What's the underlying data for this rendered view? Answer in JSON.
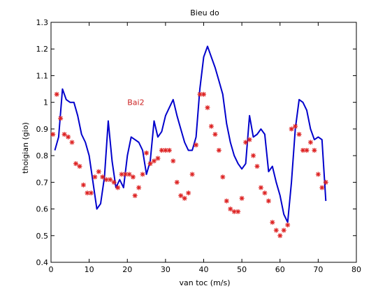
{
  "chart_data": {
    "type": "line",
    "title": "Bieu do",
    "xlabel": "van toc (m/s)",
    "ylabel": "thoigian (gio)",
    "xlim": [
      0,
      80
    ],
    "ylim": [
      0.4,
      1.3
    ],
    "xticks": [
      0,
      10,
      20,
      30,
      40,
      50,
      60,
      70,
      80
    ],
    "yticks": [
      0.4,
      0.5,
      0.6,
      0.7,
      0.8,
      0.9,
      1.0,
      1.1,
      1.2,
      1.3
    ],
    "xtick_labels": [
      "0",
      "10",
      "20",
      "30",
      "40",
      "50",
      "60",
      "70",
      "80"
    ],
    "ytick_labels": [
      "0.4",
      "0.5",
      "0.6",
      "0.7",
      "0.8",
      "0.9",
      "1",
      "1.1",
      "1.2",
      "1.3"
    ],
    "grid": false,
    "annotation": {
      "text": "Bai2",
      "x": 20,
      "y": 1.0,
      "color": "#cc2222"
    },
    "series": [
      {
        "kind": "line",
        "color": "#0000cc",
        "points": [
          [
            1,
            0.82
          ],
          [
            2,
            0.87
          ],
          [
            3,
            1.05
          ],
          [
            4,
            1.01
          ],
          [
            5,
            1.0
          ],
          [
            6,
            1.0
          ],
          [
            7,
            0.95
          ],
          [
            8,
            0.88
          ],
          [
            9,
            0.85
          ],
          [
            10,
            0.8
          ],
          [
            11,
            0.7
          ],
          [
            12,
            0.6
          ],
          [
            13,
            0.62
          ],
          [
            14,
            0.72
          ],
          [
            15,
            0.93
          ],
          [
            16,
            0.78
          ],
          [
            17,
            0.68
          ],
          [
            18,
            0.71
          ],
          [
            19,
            0.68
          ],
          [
            20,
            0.8
          ],
          [
            21,
            0.87
          ],
          [
            22,
            0.86
          ],
          [
            23,
            0.85
          ],
          [
            24,
            0.82
          ],
          [
            25,
            0.73
          ],
          [
            26,
            0.78
          ],
          [
            27,
            0.93
          ],
          [
            28,
            0.87
          ],
          [
            29,
            0.89
          ],
          [
            30,
            0.95
          ],
          [
            31,
            0.98
          ],
          [
            32,
            1.01
          ],
          [
            33,
            0.95
          ],
          [
            34,
            0.9
          ],
          [
            35,
            0.85
          ],
          [
            36,
            0.82
          ],
          [
            37,
            0.82
          ],
          [
            38,
            0.87
          ],
          [
            39,
            1.05
          ],
          [
            40,
            1.17
          ],
          [
            41,
            1.21
          ],
          [
            42,
            1.17
          ],
          [
            43,
            1.13
          ],
          [
            44,
            1.08
          ],
          [
            45,
            1.03
          ],
          [
            46,
            0.92
          ],
          [
            47,
            0.85
          ],
          [
            48,
            0.8
          ],
          [
            49,
            0.77
          ],
          [
            50,
            0.75
          ],
          [
            51,
            0.77
          ],
          [
            52,
            0.95
          ],
          [
            53,
            0.87
          ],
          [
            54,
            0.88
          ],
          [
            55,
            0.9
          ],
          [
            56,
            0.88
          ],
          [
            57,
            0.74
          ],
          [
            58,
            0.76
          ],
          [
            59,
            0.7
          ],
          [
            60,
            0.65
          ],
          [
            61,
            0.58
          ],
          [
            62,
            0.55
          ],
          [
            63,
            0.7
          ],
          [
            64,
            0.9
          ],
          [
            65,
            1.01
          ],
          [
            66,
            1.0
          ],
          [
            67,
            0.97
          ],
          [
            68,
            0.9
          ],
          [
            69,
            0.86
          ],
          [
            70,
            0.87
          ],
          [
            71,
            0.86
          ],
          [
            72,
            0.63
          ]
        ]
      },
      {
        "kind": "scatter",
        "color": "#dd2222",
        "marker": "*",
        "points": [
          [
            0.5,
            0.88
          ],
          [
            1.5,
            1.03
          ],
          [
            2.5,
            0.94
          ],
          [
            3.5,
            0.88
          ],
          [
            4.5,
            0.87
          ],
          [
            5.5,
            0.85
          ],
          [
            6.5,
            0.77
          ],
          [
            7.5,
            0.76
          ],
          [
            8.5,
            0.69
          ],
          [
            9.5,
            0.66
          ],
          [
            10.5,
            0.66
          ],
          [
            11.5,
            0.72
          ],
          [
            12.5,
            0.74
          ],
          [
            13.5,
            0.72
          ],
          [
            14.5,
            0.71
          ],
          [
            15.5,
            0.71
          ],
          [
            16.5,
            0.7
          ],
          [
            17.5,
            0.68
          ],
          [
            18.5,
            0.73
          ],
          [
            19.5,
            0.73
          ],
          [
            20.5,
            0.73
          ],
          [
            21.5,
            0.72
          ],
          [
            22,
            0.65
          ],
          [
            23,
            0.68
          ],
          [
            24,
            0.73
          ],
          [
            25,
            0.81
          ],
          [
            26,
            0.77
          ],
          [
            27,
            0.78
          ],
          [
            28,
            0.79
          ],
          [
            29,
            0.82
          ],
          [
            30,
            0.82
          ],
          [
            31,
            0.82
          ],
          [
            32,
            0.78
          ],
          [
            33,
            0.7
          ],
          [
            34,
            0.65
          ],
          [
            35,
            0.64
          ],
          [
            36,
            0.66
          ],
          [
            37,
            0.73
          ],
          [
            38,
            0.84
          ],
          [
            39,
            1.03
          ],
          [
            40,
            1.03
          ],
          [
            41,
            0.98
          ],
          [
            42,
            0.91
          ],
          [
            43,
            0.88
          ],
          [
            44,
            0.82
          ],
          [
            45,
            0.72
          ],
          [
            46,
            0.63
          ],
          [
            47,
            0.6
          ],
          [
            48,
            0.59
          ],
          [
            49,
            0.59
          ],
          [
            50,
            0.64
          ],
          [
            51,
            0.85
          ],
          [
            52,
            0.86
          ],
          [
            53,
            0.8
          ],
          [
            54,
            0.76
          ],
          [
            55,
            0.68
          ],
          [
            56,
            0.66
          ],
          [
            57,
            0.63
          ],
          [
            58,
            0.55
          ],
          [
            59,
            0.52
          ],
          [
            60,
            0.5
          ],
          [
            61,
            0.52
          ],
          [
            62,
            0.54
          ],
          [
            63,
            0.9
          ],
          [
            64,
            0.91
          ],
          [
            65,
            0.88
          ],
          [
            66,
            0.82
          ],
          [
            67,
            0.82
          ],
          [
            68,
            0.85
          ],
          [
            69,
            0.82
          ],
          [
            70,
            0.73
          ],
          [
            71,
            0.68
          ],
          [
            72,
            0.7
          ]
        ]
      }
    ]
  }
}
